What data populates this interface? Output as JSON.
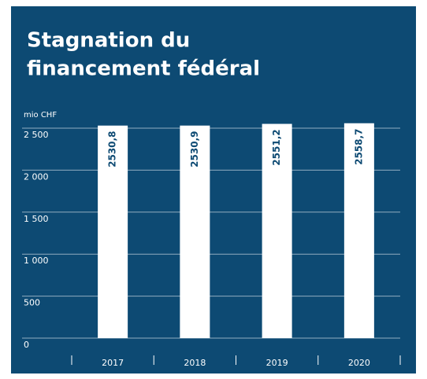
{
  "chart_data": {
    "type": "bar",
    "title": [
      "Stagnation du",
      "financement fédéral"
    ],
    "y_label": "mio CHF",
    "categories": [
      "2017",
      "2018",
      "2019",
      "2020"
    ],
    "values": [
      2530.8,
      2530.9,
      2551.2,
      2558.7
    ],
    "value_labels": [
      "2530,8",
      "2530,9",
      "2551,2",
      "2558,7"
    ],
    "color": "#ffffff",
    "ylim": [
      0,
      2500
    ],
    "yticks": [
      0,
      500,
      {
        "value": 1000,
        "label": "1 000"
      },
      {
        "value": 1500,
        "label": "1 500"
      },
      {
        "value": 2000,
        "label": "2 000"
      },
      {
        "value": 2500,
        "label": "2 500"
      }
    ],
    "grid": true
  }
}
